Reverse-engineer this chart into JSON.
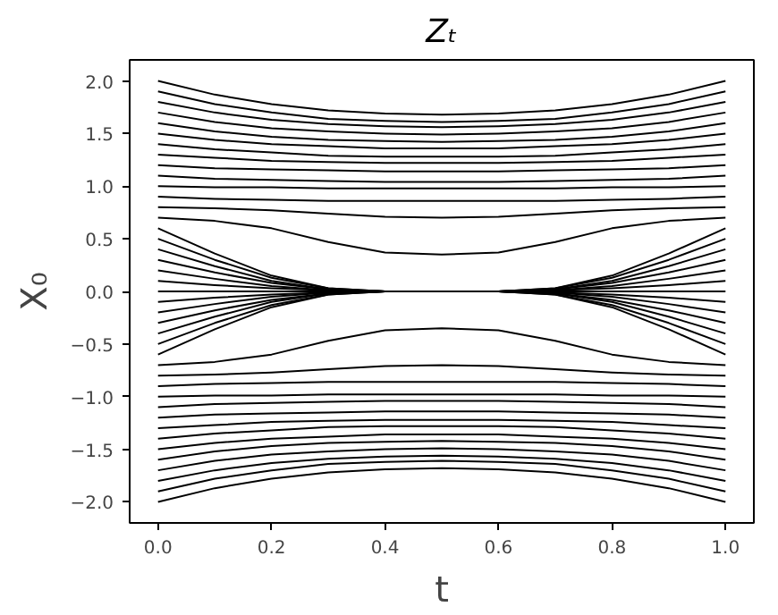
{
  "chart_data": {
    "type": "line",
    "title": "Zₜ",
    "xlabel": "t",
    "ylabel": "X₀",
    "x": [
      0,
      0.1,
      0.2,
      0.3,
      0.4,
      0.5,
      0.6,
      0.7,
      0.8,
      0.9,
      1.0
    ],
    "xlim": [
      -0.05,
      1.05
    ],
    "ylim": [
      -2.2,
      2.2
    ],
    "xticks": [
      {
        "value": 0,
        "label": "0.0"
      },
      {
        "value": 0.2,
        "label": "0.2"
      },
      {
        "value": 0.4,
        "label": "0.4"
      },
      {
        "value": 0.6,
        "label": "0.6"
      },
      {
        "value": 0.8,
        "label": "0.8"
      },
      {
        "value": 1,
        "label": "1.0"
      }
    ],
    "yticks": [
      {
        "value": -2,
        "label": "−2.0"
      },
      {
        "value": -1.5,
        "label": "−1.5"
      },
      {
        "value": -1,
        "label": "−1.0"
      },
      {
        "value": -0.5,
        "label": "−0.5"
      },
      {
        "value": 0,
        "label": "0.0"
      },
      {
        "value": 0.5,
        "label": "0.5"
      },
      {
        "value": 1,
        "label": "1.0"
      },
      {
        "value": 1.5,
        "label": "1.5"
      },
      {
        "value": 2,
        "label": "2.0"
      }
    ],
    "grid": false,
    "marker": "none",
    "line_style": "solid",
    "series": [
      {
        "color": "#000000",
        "values": [
          2.0,
          1.87,
          1.78,
          1.72,
          1.69,
          1.68,
          1.69,
          1.72,
          1.78,
          1.87,
          2.0
        ]
      },
      {
        "color": "#000000",
        "values": [
          1.9,
          1.78,
          1.7,
          1.64,
          1.62,
          1.61,
          1.62,
          1.64,
          1.7,
          1.78,
          1.9
        ]
      },
      {
        "color": "#000000",
        "values": [
          1.8,
          1.7,
          1.63,
          1.59,
          1.57,
          1.56,
          1.57,
          1.59,
          1.63,
          1.7,
          1.8
        ]
      },
      {
        "color": "#000000",
        "values": [
          1.7,
          1.61,
          1.55,
          1.52,
          1.5,
          1.49,
          1.5,
          1.52,
          1.55,
          1.61,
          1.7
        ]
      },
      {
        "color": "#000000",
        "values": [
          1.6,
          1.52,
          1.47,
          1.44,
          1.43,
          1.42,
          1.43,
          1.44,
          1.47,
          1.52,
          1.6
        ]
      },
      {
        "color": "#000000",
        "values": [
          1.5,
          1.44,
          1.4,
          1.38,
          1.36,
          1.36,
          1.36,
          1.38,
          1.4,
          1.44,
          1.5
        ]
      },
      {
        "color": "#000000",
        "values": [
          1.4,
          1.35,
          1.32,
          1.29,
          1.28,
          1.28,
          1.28,
          1.29,
          1.32,
          1.35,
          1.4
        ]
      },
      {
        "color": "#000000",
        "values": [
          1.3,
          1.27,
          1.24,
          1.23,
          1.22,
          1.22,
          1.22,
          1.23,
          1.24,
          1.27,
          1.3
        ]
      },
      {
        "color": "#000000",
        "values": [
          1.2,
          1.17,
          1.16,
          1.15,
          1.14,
          1.14,
          1.14,
          1.15,
          1.16,
          1.17,
          1.2
        ]
      },
      {
        "color": "#000000",
        "values": [
          1.1,
          1.07,
          1.06,
          1.05,
          1.04,
          1.04,
          1.04,
          1.05,
          1.06,
          1.07,
          1.1
        ]
      },
      {
        "color": "#000000",
        "values": [
          1.0,
          0.99,
          0.99,
          0.98,
          0.98,
          0.98,
          0.98,
          0.98,
          0.99,
          0.99,
          1.0
        ]
      },
      {
        "color": "#000000",
        "values": [
          0.9,
          0.88,
          0.87,
          0.86,
          0.86,
          0.86,
          0.86,
          0.86,
          0.87,
          0.88,
          0.9
        ]
      },
      {
        "color": "#000000",
        "values": [
          0.8,
          0.79,
          0.77,
          0.74,
          0.71,
          0.7,
          0.71,
          0.74,
          0.77,
          0.79,
          0.8
        ]
      },
      {
        "color": "#000000",
        "values": [
          0.7,
          0.67,
          0.6,
          0.47,
          0.37,
          0.35,
          0.37,
          0.47,
          0.6,
          0.67,
          0.7
        ]
      },
      {
        "color": "#000000",
        "values": [
          0.6,
          0.36,
          0.15,
          0.03,
          0,
          0,
          0,
          0.03,
          0.15,
          0.36,
          0.6
        ]
      },
      {
        "color": "#000000",
        "values": [
          0.5,
          0.3,
          0.13,
          0.03,
          0,
          0,
          0,
          0.03,
          0.13,
          0.3,
          0.5
        ]
      },
      {
        "color": "#000000",
        "values": [
          0.4,
          0.24,
          0.1,
          0.02,
          0,
          0,
          0,
          0.02,
          0.1,
          0.24,
          0.4
        ]
      },
      {
        "color": "#000000",
        "values": [
          0.3,
          0.18,
          0.08,
          0.02,
          0,
          0,
          0,
          0.02,
          0.08,
          0.18,
          0.3
        ]
      },
      {
        "color": "#000000",
        "values": [
          0.2,
          0.12,
          0.05,
          0.01,
          0,
          0,
          0,
          0.01,
          0.05,
          0.12,
          0.2
        ]
      },
      {
        "color": "#000000",
        "values": [
          0.1,
          0.06,
          0.03,
          0.01,
          0,
          0,
          0,
          0.01,
          0.03,
          0.06,
          0.1
        ]
      },
      {
        "color": "#000000",
        "values": [
          0,
          0,
          0,
          0,
          0,
          0,
          0,
          0,
          0,
          0,
          0
        ]
      },
      {
        "color": "#000000",
        "values": [
          -0.1,
          -0.06,
          -0.03,
          -0.01,
          0,
          0,
          0,
          -0.01,
          -0.03,
          -0.06,
          -0.1
        ]
      },
      {
        "color": "#000000",
        "values": [
          -0.2,
          -0.12,
          -0.05,
          -0.01,
          0,
          0,
          0,
          -0.01,
          -0.05,
          -0.12,
          -0.2
        ]
      },
      {
        "color": "#000000",
        "values": [
          -0.3,
          -0.18,
          -0.08,
          -0.02,
          0,
          0,
          0,
          -0.02,
          -0.08,
          -0.18,
          -0.3
        ]
      },
      {
        "color": "#000000",
        "values": [
          -0.4,
          -0.24,
          -0.1,
          -0.02,
          0,
          0,
          0,
          -0.02,
          -0.1,
          -0.24,
          -0.4
        ]
      },
      {
        "color": "#000000",
        "values": [
          -0.5,
          -0.3,
          -0.13,
          -0.03,
          0,
          0,
          0,
          -0.03,
          -0.13,
          -0.3,
          -0.5
        ]
      },
      {
        "color": "#000000",
        "values": [
          -0.6,
          -0.36,
          -0.15,
          -0.03,
          0,
          0,
          0,
          -0.03,
          -0.15,
          -0.36,
          -0.6
        ]
      },
      {
        "color": "#000000",
        "values": [
          -0.7,
          -0.67,
          -0.6,
          -0.47,
          -0.37,
          -0.35,
          -0.37,
          -0.47,
          -0.6,
          -0.67,
          -0.7
        ]
      },
      {
        "color": "#000000",
        "values": [
          -0.8,
          -0.79,
          -0.77,
          -0.74,
          -0.71,
          -0.7,
          -0.71,
          -0.74,
          -0.77,
          -0.79,
          -0.8
        ]
      },
      {
        "color": "#000000",
        "values": [
          -0.9,
          -0.88,
          -0.87,
          -0.86,
          -0.86,
          -0.86,
          -0.86,
          -0.86,
          -0.87,
          -0.88,
          -0.9
        ]
      },
      {
        "color": "#000000",
        "values": [
          -1.0,
          -0.99,
          -0.99,
          -0.98,
          -0.98,
          -0.98,
          -0.98,
          -0.98,
          -0.99,
          -0.99,
          -1.0
        ]
      },
      {
        "color": "#000000",
        "values": [
          -1.1,
          -1.07,
          -1.06,
          -1.05,
          -1.04,
          -1.04,
          -1.04,
          -1.05,
          -1.06,
          -1.07,
          -1.1
        ]
      },
      {
        "color": "#000000",
        "values": [
          -1.2,
          -1.17,
          -1.16,
          -1.15,
          -1.14,
          -1.14,
          -1.14,
          -1.15,
          -1.16,
          -1.17,
          -1.2
        ]
      },
      {
        "color": "#000000",
        "values": [
          -1.3,
          -1.27,
          -1.24,
          -1.23,
          -1.22,
          -1.22,
          -1.22,
          -1.23,
          -1.24,
          -1.27,
          -1.3
        ]
      },
      {
        "color": "#000000",
        "values": [
          -1.4,
          -1.35,
          -1.32,
          -1.29,
          -1.28,
          -1.28,
          -1.28,
          -1.29,
          -1.32,
          -1.35,
          -1.4
        ]
      },
      {
        "color": "#000000",
        "values": [
          -1.5,
          -1.44,
          -1.4,
          -1.38,
          -1.36,
          -1.36,
          -1.36,
          -1.38,
          -1.4,
          -1.44,
          -1.5
        ]
      },
      {
        "color": "#000000",
        "values": [
          -1.6,
          -1.52,
          -1.47,
          -1.44,
          -1.43,
          -1.42,
          -1.43,
          -1.44,
          -1.47,
          -1.52,
          -1.6
        ]
      },
      {
        "color": "#000000",
        "values": [
          -1.7,
          -1.61,
          -1.55,
          -1.52,
          -1.5,
          -1.49,
          -1.5,
          -1.52,
          -1.55,
          -1.61,
          -1.7
        ]
      },
      {
        "color": "#000000",
        "values": [
          -1.8,
          -1.7,
          -1.63,
          -1.59,
          -1.57,
          -1.56,
          -1.57,
          -1.59,
          -1.63,
          -1.7,
          -1.8
        ]
      },
      {
        "color": "#000000",
        "values": [
          -1.9,
          -1.78,
          -1.7,
          -1.64,
          -1.62,
          -1.61,
          -1.62,
          -1.64,
          -1.7,
          -1.78,
          -1.9
        ]
      },
      {
        "color": "#000000",
        "values": [
          -2.0,
          -1.87,
          -1.78,
          -1.72,
          -1.69,
          -1.68,
          -1.69,
          -1.72,
          -1.78,
          -1.87,
          -2.0
        ]
      }
    ]
  }
}
